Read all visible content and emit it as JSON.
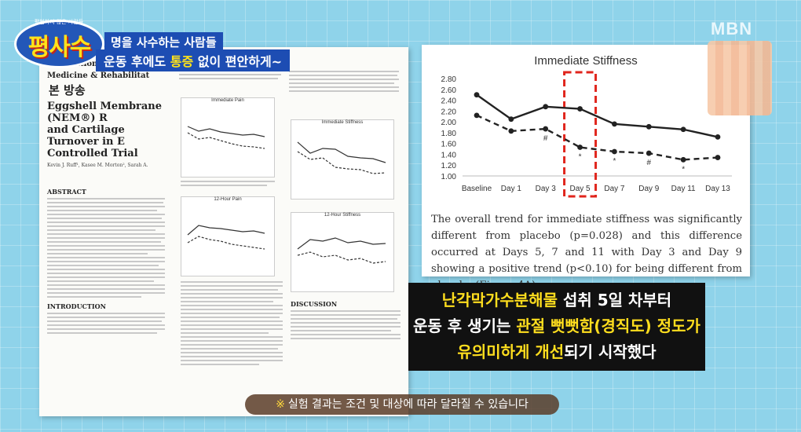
{
  "broadcaster": "MBN",
  "logo": {
    "text": "평사수",
    "tagline": "평범하지 않은 사람들"
  },
  "headline": {
    "line1": "명을 사수하는 사람들",
    "line2_before": "운동 후에도 ",
    "line2_highlight": "통증",
    "line2_after": " 없이 편안하게~"
  },
  "stamp": "본 방송",
  "paper": {
    "journal_line1": "International Journal of",
    "journal_line2": "Medicine & Rehabilitat",
    "title_lines": [
      "Eggshell Membrane (NEM®) R",
      "and Cartilage Turnover in E",
      "Controlled Trial"
    ],
    "authors": "Kevin J. Ruff¹, Kasee M. Morton², Sarah A.",
    "section_abstract": "ABSTRACT",
    "section_intro": "INTRODUCTION",
    "section_discussion": "DISCUSSION",
    "mini_titles": [
      "Immediate Pain",
      "12-Hour Pain",
      "Immediate Stiffness",
      "12-Hour Stiffness"
    ]
  },
  "chart_data": {
    "type": "line",
    "title": "Immediate Stiffness",
    "categories": [
      "Baseline",
      "Day 1",
      "Day 3",
      "Day 5",
      "Day 7",
      "Day 9",
      "Day 11",
      "Day 13"
    ],
    "series": [
      {
        "style": "solid",
        "values": [
          2.5,
          2.05,
          2.28,
          2.24,
          1.96,
          1.91,
          1.86,
          1.72
        ]
      },
      {
        "style": "dashed",
        "values": [
          2.12,
          1.83,
          1.87,
          1.53,
          1.45,
          1.42,
          1.3,
          1.34
        ]
      }
    ],
    "markers": [
      "",
      "",
      "#",
      "*",
      "*",
      "#",
      "*",
      ""
    ],
    "yticks": [
      "2.80",
      "2.60",
      "2.40",
      "2.20",
      "2.00",
      "1.80",
      "1.60",
      "1.40",
      "1.20",
      "1.00"
    ],
    "ylim": [
      1.0,
      2.8
    ],
    "highlight_category": "Day 5",
    "highlight_color": "#e0251c"
  },
  "caption": "The overall trend for immediate stiffness was significantly different from placebo (p=0.028) and this difference occurred at Days 5, 7 and 11 with Day 3 and Day 9 showing a positive trend (p<0.10) for being different from placebo (Figure 4A).",
  "subtitle": {
    "l1_yellow": "난각막가수분해물",
    "l1_rest": " 섭취 5일 차부터",
    "l2_pre": "운동 후 생기는 ",
    "l2_yellow": "관절 뻣뻣함(경직도) 정도가",
    "l3_yellow": "유의미하게 개선",
    "l3_rest": "되기 시작했다"
  },
  "notice": {
    "icon": "※",
    "text": "실험 결과는 조건 및 대상에 따라 달라질 수 있습니다"
  }
}
